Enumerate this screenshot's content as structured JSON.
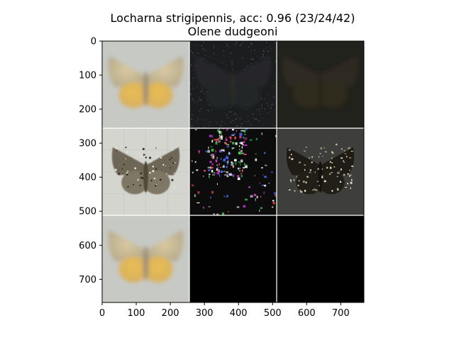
{
  "title_line1": "Locharna strigipennis, acc: 0.96 (23/24/42)",
  "title_line2": "Olene dudgeoni",
  "chart_data": {
    "type": "image-grid",
    "grid": {
      "rows": 3,
      "cols": 3,
      "cell_size": 256
    },
    "xlim": [
      0,
      768
    ],
    "ylim": [
      768,
      0
    ],
    "xticks": [
      0,
      100,
      200,
      300,
      400,
      500,
      600,
      700
    ],
    "yticks": [
      0,
      100,
      200,
      300,
      400,
      500,
      600,
      700
    ],
    "panels": [
      {
        "row": 0,
        "col": 0,
        "content": "moth-photo-blurred",
        "bg": "#c7c9c5"
      },
      {
        "row": 0,
        "col": 1,
        "content": "dark-noise-map",
        "bg": "#1b1d1f"
      },
      {
        "row": 0,
        "col": 2,
        "content": "dark-overlay",
        "bg": "#22221c"
      },
      {
        "row": 1,
        "col": 0,
        "content": "moth-photo-sharp",
        "bg": "#d4d5cf"
      },
      {
        "row": 1,
        "col": 1,
        "content": "sparse-attribution-map",
        "bg": "#0c0c0c"
      },
      {
        "row": 1,
        "col": 2,
        "content": "moth-overlay-dark",
        "bg": "#3e3e3c"
      },
      {
        "row": 2,
        "col": 0,
        "content": "moth-photo-blurred",
        "bg": "#c7c9c5"
      },
      {
        "row": 2,
        "col": 1,
        "content": "black",
        "bg": "#000000"
      },
      {
        "row": 2,
        "col": 2,
        "content": "black",
        "bg": "#000000"
      }
    ]
  }
}
